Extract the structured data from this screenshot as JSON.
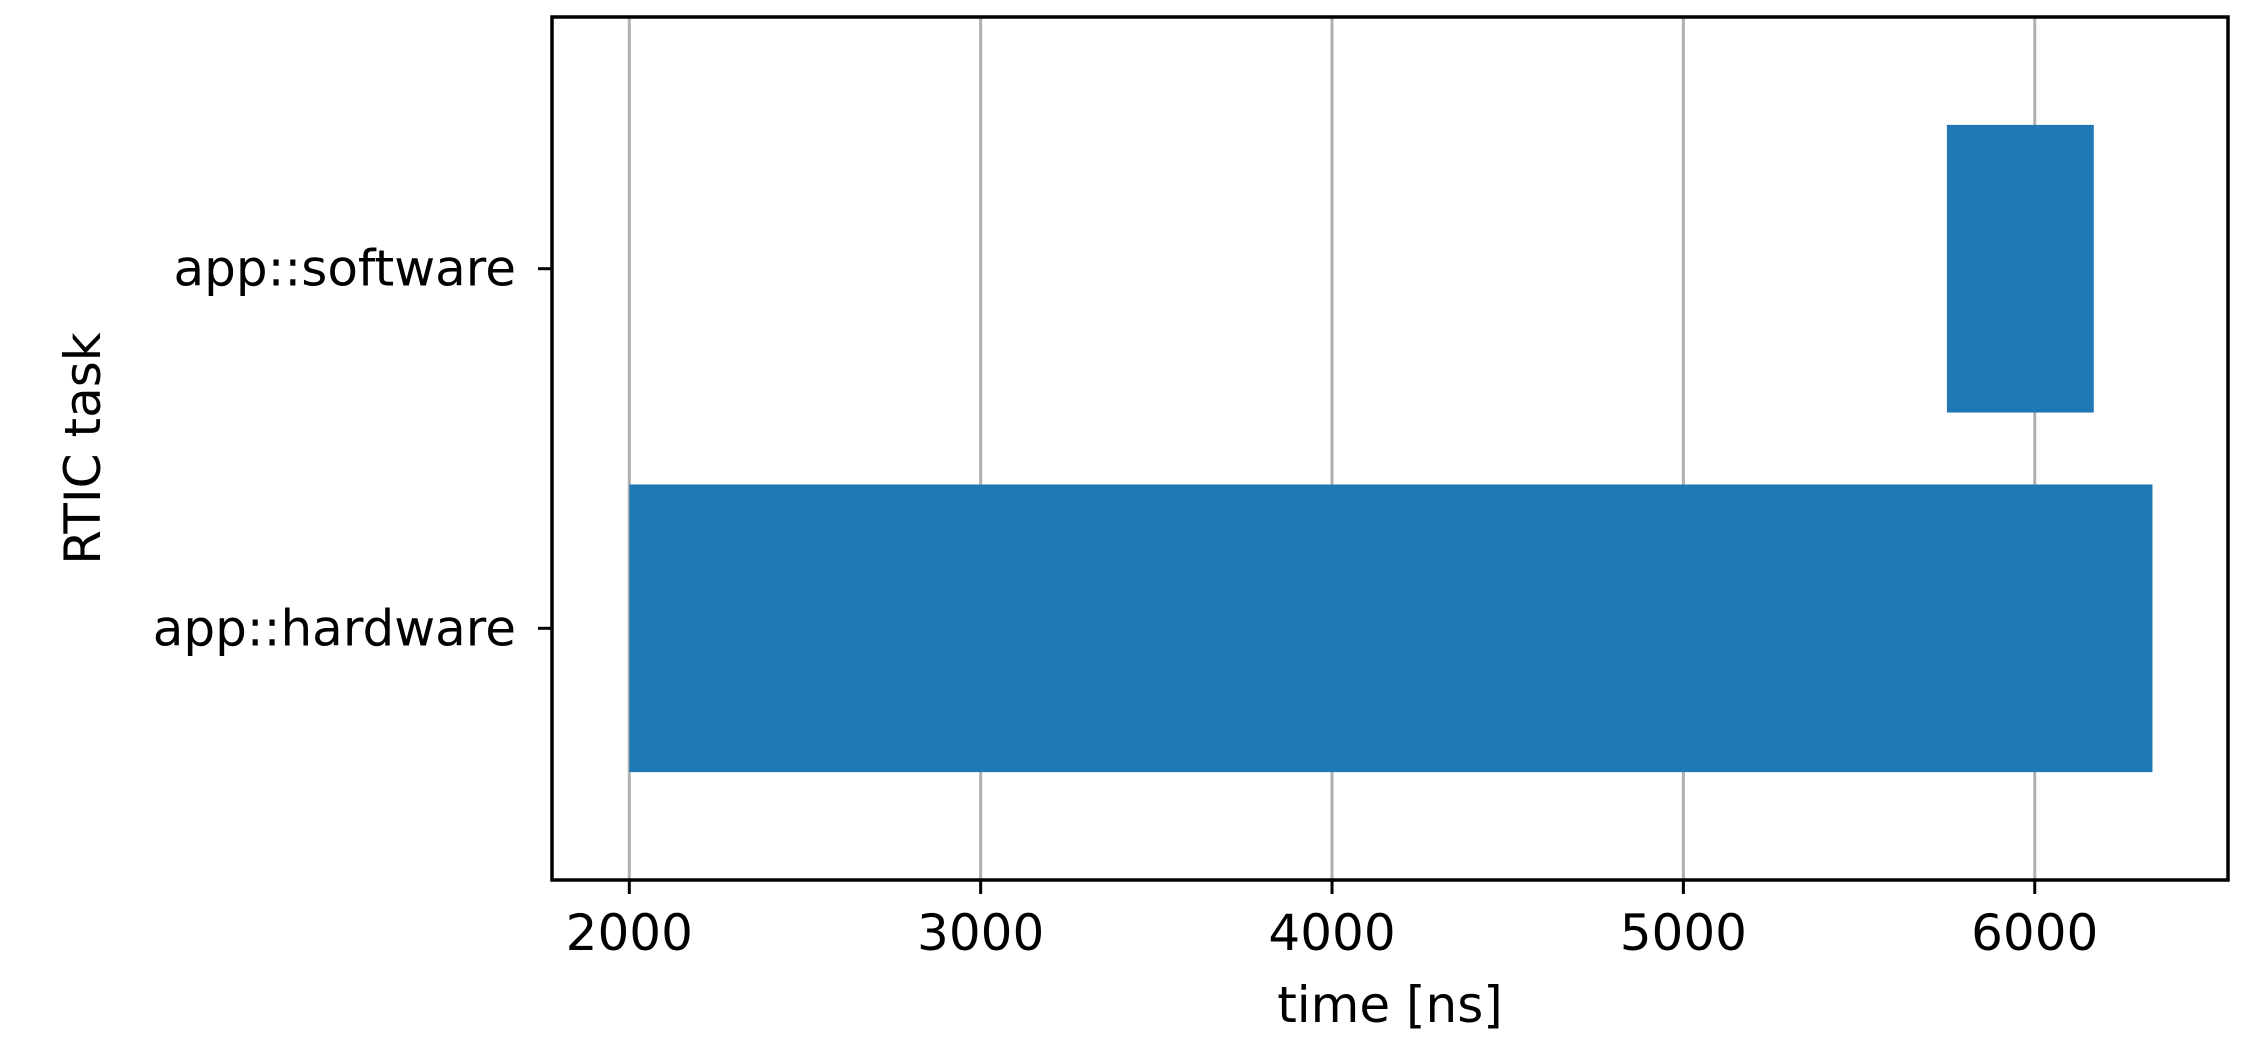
{
  "chart_data": {
    "type": "bar",
    "orientation": "horizontal",
    "xlabel": "time [ns]",
    "ylabel": "RTIC task",
    "xlim": [
      1780,
      6550
    ],
    "xticks": [
      2000,
      3000,
      4000,
      5000,
      6000
    ],
    "xtick_labels": [
      "2000",
      "3000",
      "4000",
      "5000",
      "6000"
    ],
    "grid": "x",
    "categories": [
      "app::hardware",
      "app::software"
    ],
    "bars": [
      {
        "task": "app::hardware",
        "start": 2000,
        "end": 6335
      },
      {
        "task": "app::software",
        "start": 5750,
        "end": 6168
      }
    ],
    "colors": {
      "bar": "#1f77b4",
      "grid": "#b0b0b0",
      "axis": "#000000",
      "background": "#ffffff"
    }
  }
}
